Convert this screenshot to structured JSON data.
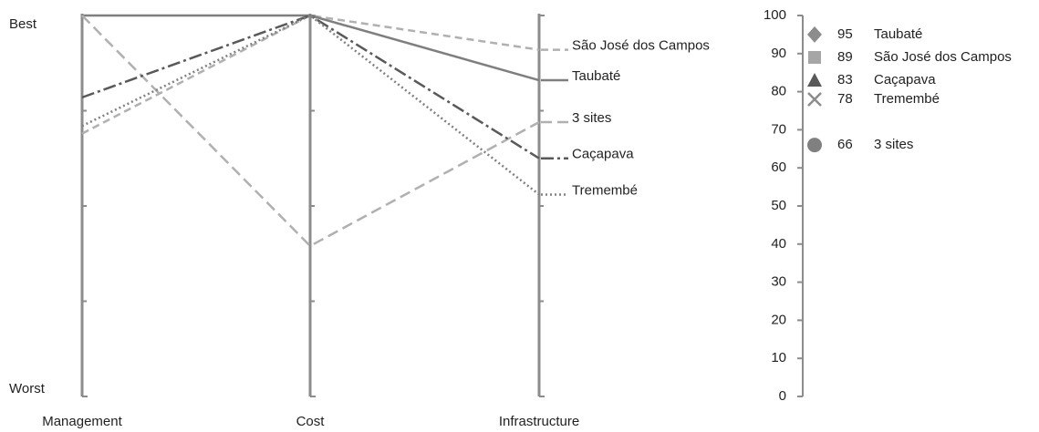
{
  "chart_data": [
    {
      "type": "parallel",
      "categories": [
        "Management",
        "Cost",
        "Infrastructure"
      ],
      "ylim": [
        0,
        100
      ],
      "yticks": [
        {
          "value": 0,
          "label": "Worst"
        },
        {
          "value": 100,
          "label": "Best"
        }
      ],
      "minor_yticks": [
        25,
        50,
        75
      ],
      "axis_color": "#8c8c8c",
      "series": [
        {
          "name": "São José dos Campos",
          "color": "#b0b0b0",
          "dash": "8,5",
          "values": [
            69,
            100,
            91
          ]
        },
        {
          "name": "Taubaté",
          "color": "#7f7f7f",
          "dash": "none",
          "values": [
            100,
            100,
            83
          ]
        },
        {
          "name": "3 sites",
          "color": "#b0b0b0",
          "dash": "12,6",
          "values": [
            100,
            39.5,
            72
          ]
        },
        {
          "name": "Caçapava",
          "color": "#595959",
          "dash": "14,4,3,4",
          "values": [
            78.5,
            100,
            62.5
          ]
        },
        {
          "name": "Tremembé",
          "color": "#808080",
          "dash": "2,3",
          "values": [
            71,
            100,
            53
          ]
        }
      ]
    },
    {
      "type": "scatter",
      "ylim": [
        0,
        100
      ],
      "yticks": [
        0,
        10,
        20,
        30,
        40,
        50,
        60,
        70,
        80,
        90,
        100
      ],
      "axis_color": "#8c8c8c",
      "series": [
        {
          "name": "Taubaté",
          "marker": "diamond",
          "color": "#8c8c8c",
          "values": [
            95
          ]
        },
        {
          "name": "São José dos Campos",
          "marker": "square",
          "color": "#a6a6a6",
          "values": [
            89
          ]
        },
        {
          "name": "Caçapava",
          "marker": "triangle",
          "color": "#595959",
          "values": [
            83
          ]
        },
        {
          "name": "Tremembé",
          "marker": "x",
          "color": "#8c8c8c",
          "values": [
            78
          ]
        },
        {
          "name": "3 sites",
          "marker": "circle",
          "color": "#808080",
          "values": [
            66
          ]
        }
      ]
    }
  ]
}
